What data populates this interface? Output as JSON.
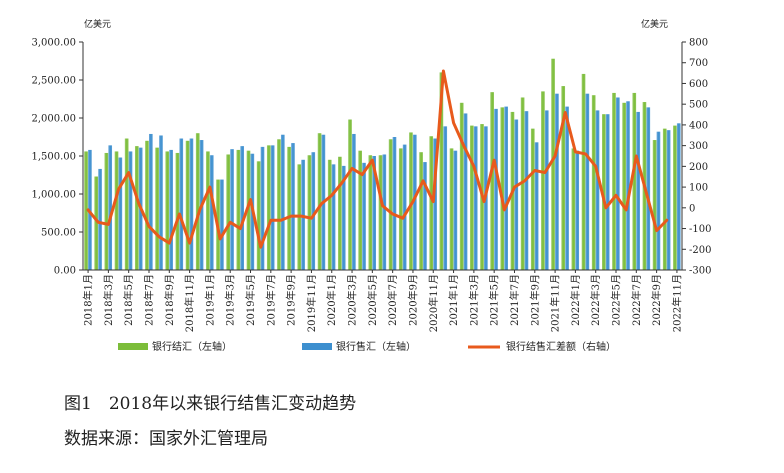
{
  "caption": {
    "title": "图1　2018年以来银行结售汇变动趋势",
    "source": "数据来源：国家外汇管理局"
  },
  "chart_data": {
    "type": "bar",
    "left_unit": "亿美元",
    "right_unit": "亿美元",
    "left_axis": {
      "min": 0,
      "max": 3000,
      "step": 500,
      "tick_labels": [
        "0.00",
        "500.00",
        "1,000.00",
        "1,500.00",
        "2,000.00",
        "2,500.00",
        "3,000.00"
      ]
    },
    "right_axis": {
      "min": -300,
      "max": 800,
      "step": 100,
      "tick_labels": [
        "-300",
        "-200",
        "-100",
        "0",
        "100",
        "200",
        "300",
        "400",
        "500",
        "600",
        "700",
        "800"
      ]
    },
    "x_tick_labels": [
      "2018年1月",
      "2018年3月",
      "2018年5月",
      "2018年7月",
      "2018年9月",
      "2018年11月",
      "2019年1月",
      "2019年3月",
      "2019年5月",
      "2019年7月",
      "2019年9月",
      "2019年11月",
      "2020年1月",
      "2020年3月",
      "2020年5月",
      "2020年7月",
      "2020年9月",
      "2020年11月",
      "2021年1月",
      "2021年3月",
      "2021年5月",
      "2021年7月",
      "2021年9月",
      "2021年11月",
      "2022年1月",
      "2022年3月",
      "2022年5月",
      "2022年7月",
      "2022年9月",
      "2022年11月"
    ],
    "categories": [
      "2018-01",
      "2018-02",
      "2018-03",
      "2018-04",
      "2018-05",
      "2018-06",
      "2018-07",
      "2018-08",
      "2018-09",
      "2018-10",
      "2018-11",
      "2018-12",
      "2019-01",
      "2019-02",
      "2019-03",
      "2019-04",
      "2019-05",
      "2019-06",
      "2019-07",
      "2019-08",
      "2019-09",
      "2019-10",
      "2019-11",
      "2019-12",
      "2020-01",
      "2020-02",
      "2020-03",
      "2020-04",
      "2020-05",
      "2020-06",
      "2020-07",
      "2020-08",
      "2020-09",
      "2020-10",
      "2020-11",
      "2020-12",
      "2021-01",
      "2021-02",
      "2021-03",
      "2021-04",
      "2021-05",
      "2021-06",
      "2021-07",
      "2021-08",
      "2021-09",
      "2021-10",
      "2021-11",
      "2021-12",
      "2022-01",
      "2022-02",
      "2022-03",
      "2022-04",
      "2022-05",
      "2022-06",
      "2022-07",
      "2022-08",
      "2022-09",
      "2022-10",
      "2022-11"
    ],
    "series": [
      {
        "name": "银行结汇（左轴）",
        "axis": "left",
        "kind": "bar",
        "color": "#7cbd3a",
        "values": [
          1560,
          1230,
          1540,
          1560,
          1730,
          1630,
          1700,
          1610,
          1560,
          1540,
          1700,
          1800,
          1560,
          1190,
          1520,
          1580,
          1570,
          1430,
          1640,
          1720,
          1620,
          1390,
          1510,
          1800,
          1450,
          1490,
          1980,
          1570,
          1510,
          1510,
          1720,
          1600,
          1810,
          1550,
          1760,
          2600,
          1600,
          2200,
          1900,
          1920,
          2340,
          2140,
          2080,
          2270,
          1860,
          2350,
          2780,
          2420,
          1600,
          2580,
          2300,
          2050,
          2330,
          2200,
          2330,
          2210,
          1710,
          1860,
          1900
        ]
      },
      {
        "name": "银行售汇（左轴）",
        "axis": "left",
        "kind": "bar",
        "color": "#3d8fcf",
        "values": [
          1580,
          1330,
          1640,
          1480,
          1560,
          1610,
          1790,
          1770,
          1580,
          1730,
          1730,
          1710,
          1510,
          1190,
          1590,
          1630,
          1530,
          1620,
          1640,
          1780,
          1670,
          1450,
          1550,
          1780,
          1390,
          1370,
          1790,
          1410,
          1500,
          1520,
          1750,
          1650,
          1780,
          1420,
          1730,
          1890,
          1570,
          2060,
          1890,
          1890,
          2120,
          2150,
          1980,
          2090,
          1680,
          2100,
          2320,
          2150,
          1570,
          2320,
          2100,
          2050,
          2270,
          2220,
          2080,
          2140,
          1820,
          1840,
          1930
        ]
      },
      {
        "name": "银行结售汇差额（右轴）",
        "axis": "right",
        "kind": "line",
        "color": "#e85a1c",
        "values": [
          -10,
          -70,
          -80,
          90,
          170,
          20,
          -90,
          -140,
          -170,
          -30,
          -170,
          -10,
          100,
          -150,
          -70,
          -100,
          40,
          -190,
          -60,
          -60,
          -40,
          -40,
          -50,
          20,
          60,
          120,
          190,
          160,
          230,
          10,
          -30,
          -50,
          30,
          130,
          30,
          660,
          410,
          300,
          200,
          30,
          230,
          -10,
          100,
          130,
          180,
          170,
          250,
          460,
          270,
          260,
          200,
          0,
          60,
          -10,
          250,
          70,
          -110,
          -60,
          null
        ]
      }
    ],
    "legend": {
      "position": "bottom",
      "entries": [
        "银行结汇（左轴）",
        "银行售汇（左轴）",
        "银行结售汇差额（右轴）"
      ]
    },
    "grid": false
  }
}
